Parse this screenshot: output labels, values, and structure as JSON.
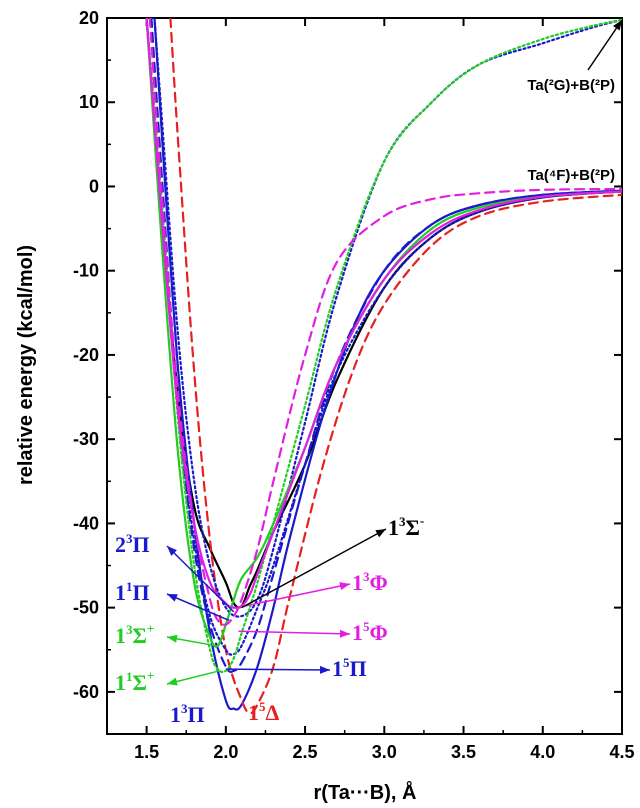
{
  "colors": {
    "black": "#000000",
    "blue": "#1a1acc",
    "red": "#e62020",
    "green": "#22cc22",
    "magenta": "#e020e0",
    "teal": "#209a9a"
  },
  "chart_data": {
    "type": "line",
    "xlabel": "r(Ta···B), Å",
    "ylabel": "relative energy (kcal/mol)",
    "xlim": [
      1.25,
      4.5
    ],
    "ylim": [
      -65,
      20
    ],
    "xticks": [
      "1.5",
      "2.0",
      "2.5",
      "3.0",
      "3.5",
      "4.0",
      "4.5"
    ],
    "yticks": [
      "20",
      "10",
      "0",
      "-10",
      "-20",
      "-30",
      "-40",
      "-50",
      "-60"
    ],
    "asymptotes": [
      {
        "label": "Ta(²G)+B(²P)",
        "energy": 20
      },
      {
        "label": "Ta(⁴F)+B(²P)",
        "energy": 0
      }
    ],
    "series": [
      {
        "name": "1³Σ⁻",
        "color": "black",
        "dash": "solid",
        "x": [
          1.5,
          1.6,
          1.7,
          1.8,
          1.9,
          2.0,
          2.05,
          2.1,
          2.15,
          2.2,
          2.3,
          2.5,
          2.7,
          3.0,
          3.3,
          3.6,
          4.0,
          4.5
        ],
        "y": [
          20,
          -5,
          -25,
          -38,
          -43,
          -47,
          -49.5,
          -49.8,
          -47.5,
          -45.5,
          -41,
          -33,
          -23,
          -12,
          -6,
          -3,
          -1.3,
          -0.6
        ]
      },
      {
        "name": "1³Π",
        "color": "blue",
        "dash": "solid",
        "x": [
          1.55,
          1.6,
          1.7,
          1.8,
          1.9,
          2.0,
          2.05,
          2.1,
          2.2,
          2.3,
          2.4,
          2.6,
          2.8,
          3.0,
          3.3,
          3.6,
          4.0,
          4.5
        ],
        "y": [
          20,
          5,
          -22,
          -40,
          -53,
          -61,
          -62,
          -61.5,
          -57,
          -50,
          -42,
          -28,
          -17,
          -10,
          -4.5,
          -2.2,
          -1,
          -0.5
        ]
      },
      {
        "name": "1⁵Δ",
        "color": "red",
        "dash": "dashed",
        "x": [
          1.65,
          1.7,
          1.8,
          1.9,
          2.0,
          2.1,
          2.15,
          2.2,
          2.3,
          2.4,
          2.6,
          2.8,
          3.0,
          3.3,
          3.6,
          4.0,
          4.5
        ],
        "y": [
          20,
          5,
          -22,
          -42,
          -55,
          -61,
          -62.5,
          -61.5,
          -57,
          -49,
          -34,
          -22,
          -14,
          -7,
          -3.5,
          -1.8,
          -1
        ]
      },
      {
        "name": "1⁵Π",
        "color": "blue",
        "dash": "dashed",
        "x": [
          1.53,
          1.6,
          1.7,
          1.8,
          1.9,
          2.0,
          2.05,
          2.1,
          2.2,
          2.3,
          2.5,
          2.7,
          3.0,
          3.3,
          3.6,
          4.0,
          4.5
        ],
        "y": [
          20,
          0,
          -27,
          -43,
          -52,
          -57,
          -57.5,
          -56.5,
          -52.5,
          -46,
          -33,
          -21,
          -10,
          -4.5,
          -2.2,
          -1,
          -0.5
        ]
      },
      {
        "name": "1¹Π",
        "color": "blue",
        "dash": "dotted",
        "x": [
          1.5,
          1.6,
          1.7,
          1.8,
          1.9,
          2.0,
          2.05,
          2.1,
          2.2,
          2.3,
          2.5,
          2.7,
          3.0,
          3.3,
          3.6,
          4.0,
          4.5
        ],
        "y": [
          20,
          -3,
          -27,
          -42,
          -51,
          -55,
          -55.5,
          -54.5,
          -50,
          -45,
          -33,
          -22,
          -12,
          -6,
          -3,
          -1.3,
          -0.6
        ]
      },
      {
        "name": "2³Π",
        "color": "blue",
        "dash": "dotted",
        "x": [
          1.55,
          1.6,
          1.7,
          1.8,
          1.9,
          2.0,
          2.1,
          2.2,
          2.3,
          2.5,
          2.7,
          3.0,
          3.3,
          3.6,
          4.0,
          4.3,
          4.5
        ],
        "y": [
          20,
          7,
          -18,
          -35,
          -45,
          -50,
          -51,
          -49,
          -43,
          -28,
          -13,
          3,
          10,
          14.5,
          17,
          18.8,
          19.8
        ]
      },
      {
        "name": "1³Σ⁺",
        "color": "green",
        "dash": "solid",
        "x": [
          1.5,
          1.6,
          1.7,
          1.8,
          1.9,
          1.95,
          2.0,
          2.05,
          2.1,
          2.2,
          2.3,
          2.5,
          2.7,
          3.0,
          3.3,
          3.6,
          4.0,
          4.5
        ],
        "y": [
          20,
          -8,
          -32,
          -47,
          -53.5,
          -54.5,
          -52,
          -49,
          -46.5,
          -44,
          -40,
          -31,
          -21,
          -11,
          -5,
          -2.5,
          -1.2,
          -0.6
        ]
      },
      {
        "name": "1¹Σ⁺",
        "color": "green",
        "dash": "dotted",
        "x": [
          1.5,
          1.6,
          1.7,
          1.8,
          1.9,
          1.95,
          2.0,
          2.05,
          2.1,
          2.2,
          2.3,
          2.5,
          2.7,
          3.0,
          3.3,
          3.6,
          4.0,
          4.3,
          4.5
        ],
        "y": [
          20,
          -3,
          -28,
          -45,
          -55,
          -57.3,
          -57.5,
          -56,
          -53,
          -47,
          -40,
          -26,
          -12,
          3,
          10,
          14.5,
          17.5,
          19,
          19.8
        ]
      },
      {
        "name": "1³Φ",
        "color": "magenta",
        "dash": "solid",
        "x": [
          1.5,
          1.6,
          1.7,
          1.8,
          1.9,
          2.0,
          2.05,
          2.1,
          2.15,
          2.2,
          2.3,
          2.5,
          2.7,
          3.0,
          3.3,
          3.6,
          4.0,
          4.5
        ],
        "y": [
          20,
          -5,
          -27,
          -40,
          -47,
          -49.5,
          -50,
          -49.8,
          -48.5,
          -46,
          -41,
          -31,
          -21,
          -11,
          -5.5,
          -2.8,
          -1.2,
          -0.6
        ]
      },
      {
        "name": "1⁵Φ",
        "color": "magenta",
        "dash": "dashed",
        "x": [
          1.52,
          1.6,
          1.7,
          1.8,
          1.9,
          1.95,
          2.0,
          2.05,
          2.1,
          2.2,
          2.3,
          2.5,
          2.7,
          3.0,
          3.3,
          3.6,
          4.0,
          4.5
        ],
        "y": [
          20,
          -2,
          -25,
          -40,
          -49,
          -51.5,
          -52,
          -51,
          -49,
          -43,
          -35,
          -20,
          -9,
          -3.5,
          -1.5,
          -0.8,
          -0.4,
          -0.3
        ]
      }
    ],
    "labels": [
      {
        "base": "2",
        "sup": "3",
        "sym": "Π",
        "ion": "",
        "color": "blue",
        "tx": 2.05,
        "ty": -50.5
      },
      {
        "base": "1",
        "sup": "1",
        "sym": "Π",
        "ion": "",
        "color": "blue",
        "tx": 2.02,
        "ty": -51.5
      },
      {
        "base": "1",
        "sup": "3",
        "sym": "Σ",
        "ion": "+",
        "color": "green",
        "tx": 1.93,
        "ty": -54.5
      },
      {
        "base": "1",
        "sup": "1",
        "sym": "Σ",
        "ion": "+",
        "color": "green",
        "tx": 1.96,
        "ty": -57.5
      },
      {
        "base": "1",
        "sup": "3",
        "sym": "Π",
        "ion": "",
        "color": "blue",
        "tx": null,
        "ty": null
      },
      {
        "base": "1",
        "sup": "5",
        "sym": "Δ",
        "ion": "",
        "color": "red",
        "tx": null,
        "ty": null
      },
      {
        "base": "1",
        "sup": "5",
        "sym": "Π",
        "ion": "",
        "color": "blue",
        "tx": 2.0,
        "ty": -57.3
      },
      {
        "base": "1",
        "sup": "5",
        "sym": "Φ",
        "ion": "",
        "color": "magenta",
        "tx": 2.08,
        "ty": -52.8
      },
      {
        "base": "1",
        "sup": "3",
        "sym": "Φ",
        "ion": "",
        "color": "magenta",
        "tx": 2.12,
        "ty": -49.8
      },
      {
        "base": "1",
        "sup": "3",
        "sym": "Σ",
        "ion": "-",
        "color": "black",
        "tx": 2.1,
        "ty": -50
      }
    ]
  }
}
